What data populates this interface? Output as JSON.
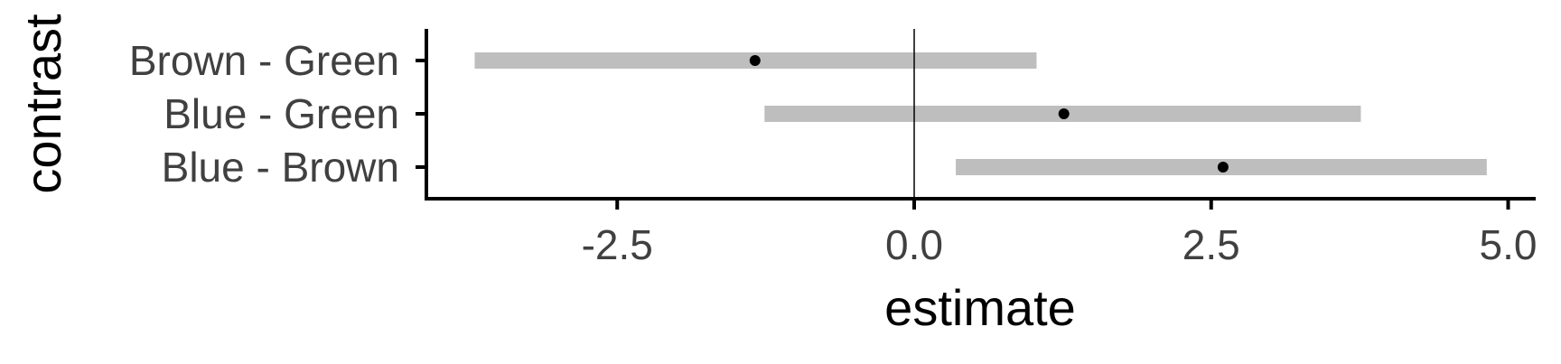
{
  "chart_data": {
    "type": "forest",
    "xlabel": "estimate",
    "ylabel": "contrast",
    "xlim": [
      -4.1,
      5.2
    ],
    "x_ticks": [
      -2.5,
      0.0,
      2.5,
      5.0
    ],
    "x_tick_labels": [
      "-2.5",
      "0.0",
      "2.5",
      "5.0"
    ],
    "reference_line": 0,
    "grid": false,
    "categories": [
      "Brown - Green",
      "Blue - Green",
      "Blue - Brown"
    ],
    "points": [
      {
        "category": "Brown - Green",
        "estimate": -1.34,
        "lower": -3.7,
        "upper": 1.03
      },
      {
        "category": "Blue - Green",
        "estimate": 1.26,
        "lower": -1.26,
        "upper": 3.76
      },
      {
        "category": "Blue - Brown",
        "estimate": 2.6,
        "lower": 0.35,
        "upper": 4.82
      }
    ],
    "colors": {
      "interval": "#bebebe",
      "point": "#000000",
      "axis": "#000000",
      "text": "#404040"
    }
  }
}
